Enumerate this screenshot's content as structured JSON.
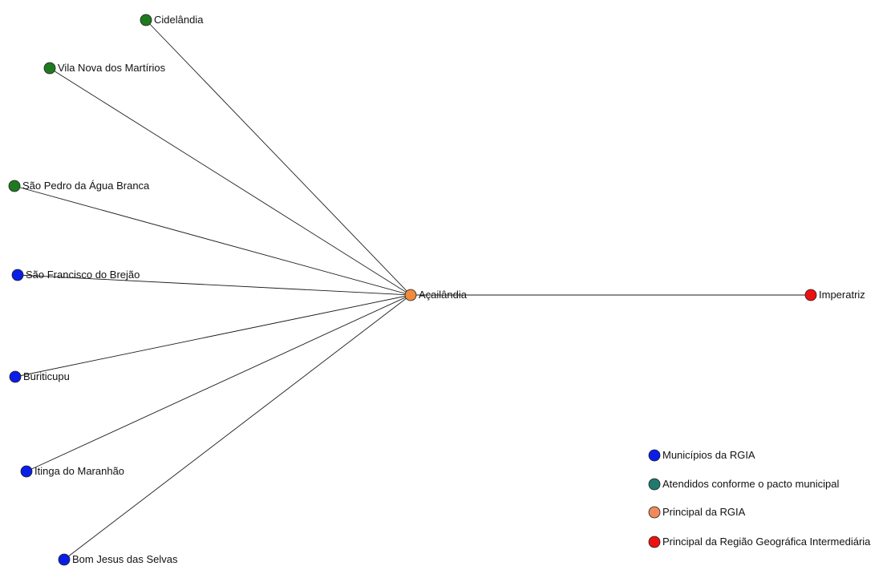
{
  "nodes": [
    {
      "id": "cidelandia",
      "label": "Cidelândia",
      "group": "green"
    },
    {
      "id": "vila-nova",
      "label": "Vila Nova dos Martírios",
      "group": "green"
    },
    {
      "id": "sao-pedro",
      "label": "São Pedro da Água Branca",
      "group": "green"
    },
    {
      "id": "sao-francisco",
      "label": "São Francisco do Brejão",
      "group": "blue"
    },
    {
      "id": "buriticupu",
      "label": "Buriticupu",
      "group": "blue"
    },
    {
      "id": "itinga",
      "label": "Itinga do Maranhão",
      "group": "blue"
    },
    {
      "id": "bom-jesus",
      "label": "Bom Jesus das Selvas",
      "group": "blue"
    },
    {
      "id": "acailandia",
      "label": "Açailândia",
      "group": "orange"
    },
    {
      "id": "imperatriz",
      "label": "Imperatriz",
      "group": "red"
    }
  ],
  "edges": [
    [
      "cidelandia",
      "acailandia"
    ],
    [
      "vila-nova",
      "acailandia"
    ],
    [
      "sao-pedro",
      "acailandia"
    ],
    [
      "sao-francisco",
      "acailandia"
    ],
    [
      "buriticupu",
      "acailandia"
    ],
    [
      "itinga",
      "acailandia"
    ],
    [
      "bom-jesus",
      "acailandia"
    ],
    [
      "acailandia",
      "imperatriz"
    ]
  ],
  "colors": {
    "green": "#1e7a1e",
    "blue": "#0a1ee8",
    "orange": "#f08a3c",
    "red": "#ee1111",
    "teal": "#1f7a70",
    "salmon": "#f08a5a"
  },
  "legend": [
    {
      "label": "Municípios da RGIA",
      "color": "blue"
    },
    {
      "label": "Atendidos conforme o pacto municipal",
      "color": "teal"
    },
    {
      "label": "Principal da RGIA",
      "color": "salmon"
    },
    {
      "label": "Principal da Região Geográfica Intermediária",
      "color": "red"
    }
  ]
}
